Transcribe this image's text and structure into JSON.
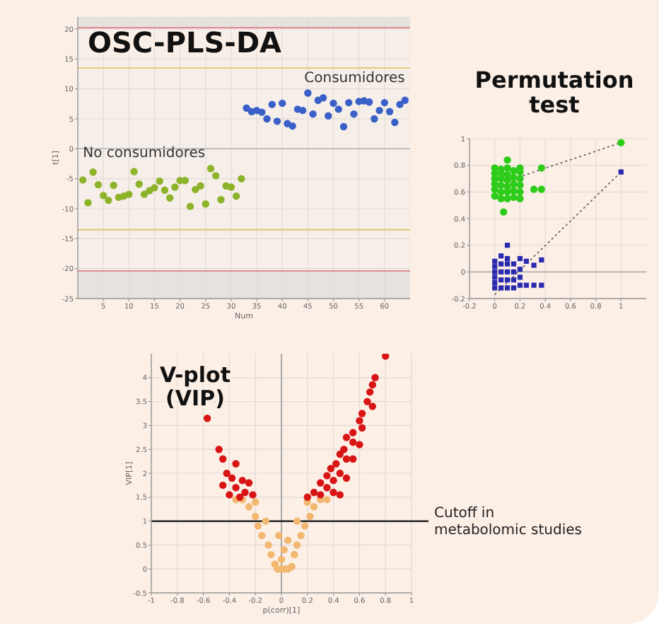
{
  "chart_data": [
    {
      "type": "scatter",
      "title": "OSC-PLS-DA",
      "xlabel": "Num",
      "ylabel": "t[1]",
      "xlim": [
        0,
        65
      ],
      "xticks": [
        5,
        10,
        15,
        20,
        25,
        30,
        35,
        40,
        45,
        50,
        55,
        60
      ],
      "ylim": [
        -25,
        22
      ],
      "yticks": [
        -25,
        -20,
        -15,
        -10,
        -5,
        0,
        5,
        10,
        15,
        20
      ],
      "grid": true,
      "marker": "circle",
      "ref_lines": [
        {
          "axis": "y",
          "value": 20.2,
          "color": "#d9707a"
        },
        {
          "axis": "y",
          "value": 13.5,
          "color": "#e0c060"
        },
        {
          "axis": "y",
          "value": 0,
          "color": "#b0b0b0"
        },
        {
          "axis": "y",
          "value": -13.5,
          "color": "#e0c060"
        },
        {
          "axis": "y",
          "value": -20.4,
          "color": "#d9707a"
        }
      ],
      "bands": [
        {
          "axis": "y",
          "from": 20.2,
          "to": 22,
          "color": "#e6e2de"
        },
        {
          "axis": "y",
          "from": -25,
          "to": -20.4,
          "color": "#e6e2de"
        }
      ],
      "series": [
        {
          "name": "No consumidores",
          "color": "#8db32a",
          "x": [
            1,
            2,
            3,
            4,
            5,
            6,
            7,
            8,
            9,
            10,
            11,
            12,
            13,
            14,
            15,
            16,
            17,
            18,
            19,
            20,
            21,
            22,
            23,
            24,
            25,
            26,
            27,
            28,
            29,
            30,
            31,
            32
          ],
          "values": [
            -5.2,
            -9,
            -3.9,
            -6,
            -7.8,
            -8.6,
            -6.1,
            -8.1,
            -7.9,
            -7.6,
            -3.8,
            -5.9,
            -7.6,
            -7,
            -6.5,
            -5.4,
            -6.9,
            -8.2,
            -6.4,
            -5.3,
            -5.3,
            -9.6,
            -6.8,
            -6.2,
            -9.2,
            -3.3,
            -4.5,
            -8.5,
            -6.2,
            -6.4,
            -7.9,
            -5
          ]
        },
        {
          "name": "Consumidores",
          "color": "#3a5fc8",
          "x": [
            33,
            34,
            35,
            36,
            37,
            38,
            39,
            40,
            41,
            42,
            43,
            44,
            45,
            46,
            47,
            48,
            49,
            50,
            51,
            52,
            53,
            54,
            55,
            56,
            57,
            58,
            59,
            60,
            61,
            62,
            63,
            64
          ],
          "values": [
            6.8,
            6.2,
            6.4,
            6.1,
            5,
            7.4,
            4.6,
            7.6,
            4.2,
            3.8,
            6.6,
            6.4,
            9.3,
            5.8,
            8.1,
            8.5,
            5.5,
            7.6,
            6.6,
            3.7,
            7.7,
            5.8,
            7.9,
            8,
            7.8,
            5,
            6.4,
            7.7,
            6.2,
            4.4,
            7.4,
            8.1
          ]
        }
      ]
    },
    {
      "type": "scatter",
      "title": "Permutation test",
      "xlim": [
        -0.2,
        1.2
      ],
      "xticks": [
        -0.2,
        0,
        0.2,
        0.4,
        0.6,
        0.8,
        1
      ],
      "ylim": [
        -0.2,
        1
      ],
      "yticks": [
        -0.2,
        0,
        0.2,
        0.4,
        0.6,
        0.8,
        1
      ],
      "grid": true,
      "ref_lines": [
        {
          "axis": "y",
          "value": 0,
          "color": "#b0b0b0"
        }
      ],
      "series": [
        {
          "color": "#2ecc1a",
          "marker": "circle",
          "x": [
            0,
            0,
            0,
            0,
            0,
            0,
            0.05,
            0.05,
            0.05,
            0.05,
            0.05,
            0.05,
            0.1,
            0.1,
            0.1,
            0.1,
            0.1,
            0.1,
            0.1,
            0.15,
            0.15,
            0.15,
            0.15,
            0.15,
            0.2,
            0.2,
            0.2,
            0.2,
            0.2,
            0.2,
            0.31,
            0.37,
            0.37,
            0.07,
            1
          ],
          "values": [
            0.57,
            0.62,
            0.66,
            0.7,
            0.74,
            0.78,
            0.55,
            0.6,
            0.65,
            0.7,
            0.74,
            0.77,
            0.55,
            0.6,
            0.64,
            0.69,
            0.73,
            0.78,
            0.84,
            0.56,
            0.61,
            0.66,
            0.71,
            0.76,
            0.55,
            0.6,
            0.65,
            0.7,
            0.75,
            0.78,
            0.62,
            0.78,
            0.62,
            0.45,
            0.97
          ]
        },
        {
          "color": "#2a2ab0",
          "marker": "square",
          "x": [
            0,
            0,
            0,
            0,
            0,
            0,
            0.05,
            0.05,
            0.05,
            0.05,
            0.05,
            0.1,
            0.1,
            0.1,
            0.1,
            0.1,
            0.1,
            0.15,
            0.15,
            0.15,
            0.15,
            0.2,
            0.2,
            0.2,
            0.2,
            0.25,
            0.25,
            0.31,
            0.31,
            0.37,
            0.37,
            1
          ],
          "values": [
            -0.12,
            -0.08,
            -0.04,
            0,
            0.04,
            0.08,
            -0.12,
            -0.06,
            0,
            0.06,
            0.12,
            -0.12,
            -0.06,
            0,
            0.06,
            0.1,
            0.2,
            -0.12,
            -0.06,
            0,
            0.06,
            -0.1,
            -0.04,
            0.02,
            0.1,
            -0.1,
            0.08,
            -0.1,
            0.05,
            -0.1,
            0.09,
            0.75
          ]
        },
        {
          "type": "line",
          "color": "#555555",
          "line_style": "dotted",
          "x": [
            0,
            1
          ],
          "values": [
            0.65,
            0.97
          ]
        },
        {
          "type": "line",
          "color": "#555555",
          "line_style": "dotted",
          "x": [
            0,
            1
          ],
          "values": [
            -0.17,
            0.75
          ]
        }
      ]
    },
    {
      "type": "scatter",
      "title": "V-plot\n(VIP)",
      "xlabel": "p(corr)[1]",
      "ylabel": "VIP[1]",
      "xlim": [
        -1,
        1
      ],
      "xticks": [
        -1,
        -0.8,
        -0.6,
        -0.4,
        -0.2,
        0,
        0.2,
        0.4,
        0.6,
        0.8,
        1
      ],
      "ylim": [
        -0.5,
        4.5
      ],
      "yticks": [
        -0.5,
        0,
        0.5,
        1,
        1.5,
        2,
        2.5,
        3,
        3.5,
        4
      ],
      "grid": true,
      "marker": "circle",
      "ref_lines": [
        {
          "axis": "x",
          "value": 0,
          "color": "#999999"
        },
        {
          "axis": "y",
          "value": 1,
          "color": "#111111",
          "label": "Cutoff in metabolomic studies"
        }
      ],
      "series": [
        {
          "color": "#f2b870",
          "x": [
            0,
            0.02,
            0.05,
            -0.03,
            0.08,
            -0.05,
            0,
            0.1,
            -0.08,
            0.12,
            -0.1,
            0.15,
            -0.15,
            0.02,
            0.18,
            -0.18,
            0.22,
            -0.2,
            0.25,
            -0.25,
            0.3,
            -0.3,
            0.12,
            -0.12,
            0.35,
            -0.35,
            0.2,
            -0.2,
            0.05,
            -0.02
          ],
          "values": [
            0,
            0,
            0,
            0,
            0.05,
            0.1,
            0.2,
            0.3,
            0.3,
            0.5,
            0.5,
            0.7,
            0.7,
            0.4,
            0.9,
            0.9,
            1.1,
            1.1,
            1.3,
            1.3,
            1.45,
            1.45,
            1,
            1,
            1.45,
            1.45,
            1.4,
            1.4,
            0.6,
            0.7
          ]
        },
        {
          "color": "#d81414",
          "x": [
            0.8,
            0.72,
            0.7,
            0.68,
            0.66,
            0.7,
            0.62,
            0.6,
            0.62,
            0.55,
            0.5,
            0.55,
            0.48,
            0.45,
            0.5,
            0.42,
            0.38,
            0.45,
            0.35,
            0.4,
            0.3,
            0.35,
            0.25,
            0.3,
            0.4,
            0.2,
            0.45,
            0.5,
            0.55,
            0.6,
            -0.57,
            -0.48,
            -0.45,
            -0.35,
            -0.42,
            -0.38,
            -0.3,
            -0.25,
            -0.45,
            -0.35,
            -0.28,
            -0.22,
            -0.4,
            -0.32
          ],
          "values": [
            4.45,
            4,
            3.85,
            3.7,
            3.5,
            3.4,
            3.25,
            3.1,
            2.95,
            2.85,
            2.75,
            2.65,
            2.5,
            2.4,
            2.3,
            2.2,
            2.1,
            2,
            1.95,
            1.85,
            1.8,
            1.7,
            1.6,
            1.55,
            1.6,
            1.5,
            1.55,
            1.9,
            2.3,
            2.6,
            3.15,
            2.5,
            2.3,
            2.2,
            2,
            1.9,
            1.85,
            1.8,
            1.75,
            1.7,
            1.6,
            1.55,
            1.55,
            1.5
          ]
        }
      ]
    }
  ]
}
